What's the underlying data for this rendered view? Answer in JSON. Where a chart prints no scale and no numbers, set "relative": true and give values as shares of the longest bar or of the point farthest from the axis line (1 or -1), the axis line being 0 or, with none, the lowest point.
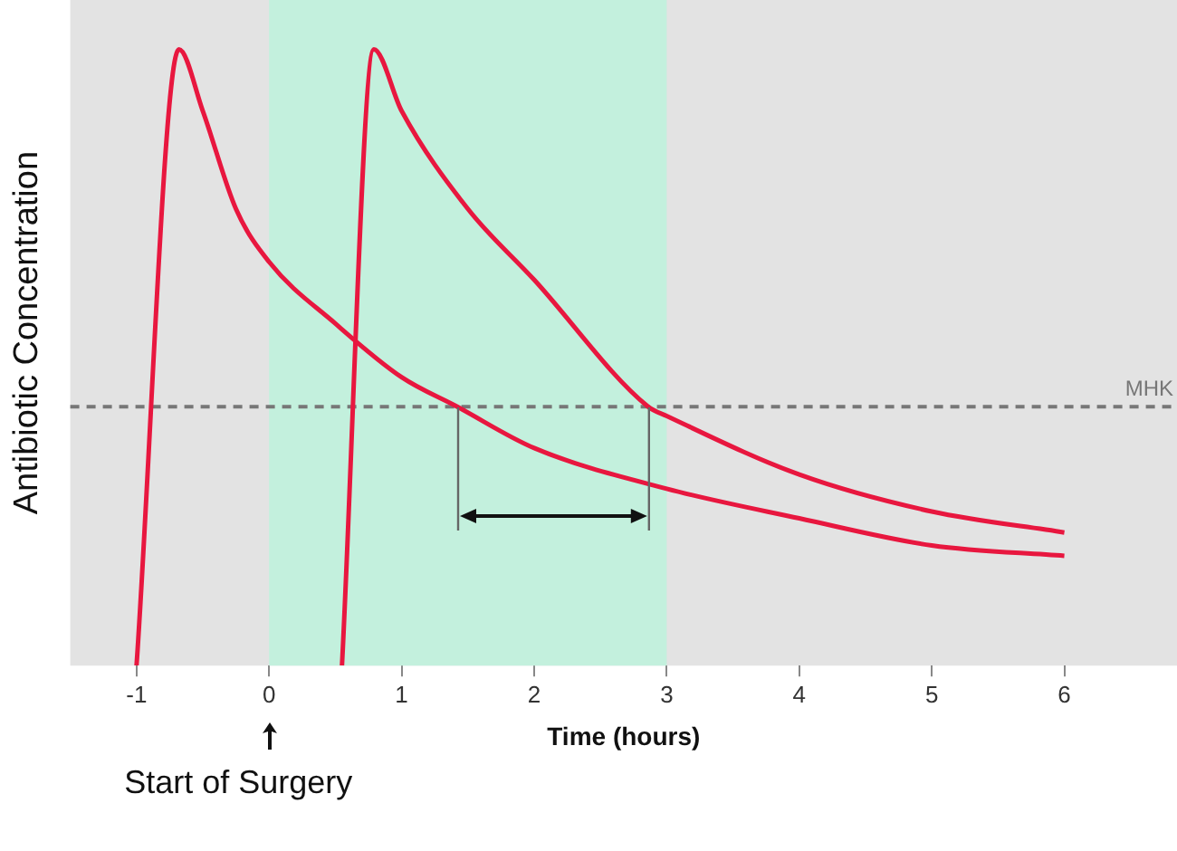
{
  "chart_data": {
    "type": "line",
    "relative": true,
    "xlabel": "Time (hours)",
    "ylabel": "Antibiotic Concentration",
    "x": [
      -1,
      -0.68,
      -0.5,
      -0.25,
      0,
      0.5,
      1,
      1.42,
      2,
      3,
      4,
      5,
      6
    ],
    "xlim": [
      -1.5,
      6.85
    ],
    "xticks": [
      {
        "value": -1,
        "label": "-1"
      },
      0,
      1,
      2,
      3,
      4,
      5,
      6
    ],
    "series": [
      {
        "color": "#e8173f",
        "values": [
          0,
          1,
          0.9,
          0.741,
          0.655,
          0.555,
          0.468,
          0.42,
          0.353,
          0.287,
          0.239,
          0.195,
          0.178
        ]
      },
      {
        "color": "#e8173f",
        "x": [
          0.55,
          0.79,
          1,
          1.5,
          2,
          2.86,
          3,
          4,
          5,
          6
        ],
        "values": [
          0,
          1,
          0.9,
          0.741,
          0.626,
          0.42,
          0.405,
          0.31,
          0.25,
          0.216
        ]
      }
    ],
    "ref_lines": [
      {
        "axis": "y",
        "value": 0.42,
        "label": "MHK",
        "color": "#777777",
        "line_style": "dashed"
      }
    ],
    "bands": [
      {
        "axis": "x",
        "from": 0,
        "to": 3,
        "color": "#c3f0dd"
      }
    ],
    "annotations": [
      "Start of Surgery"
    ],
    "grid": false,
    "legend": false,
    "marker": "none",
    "line_style": "solid"
  }
}
